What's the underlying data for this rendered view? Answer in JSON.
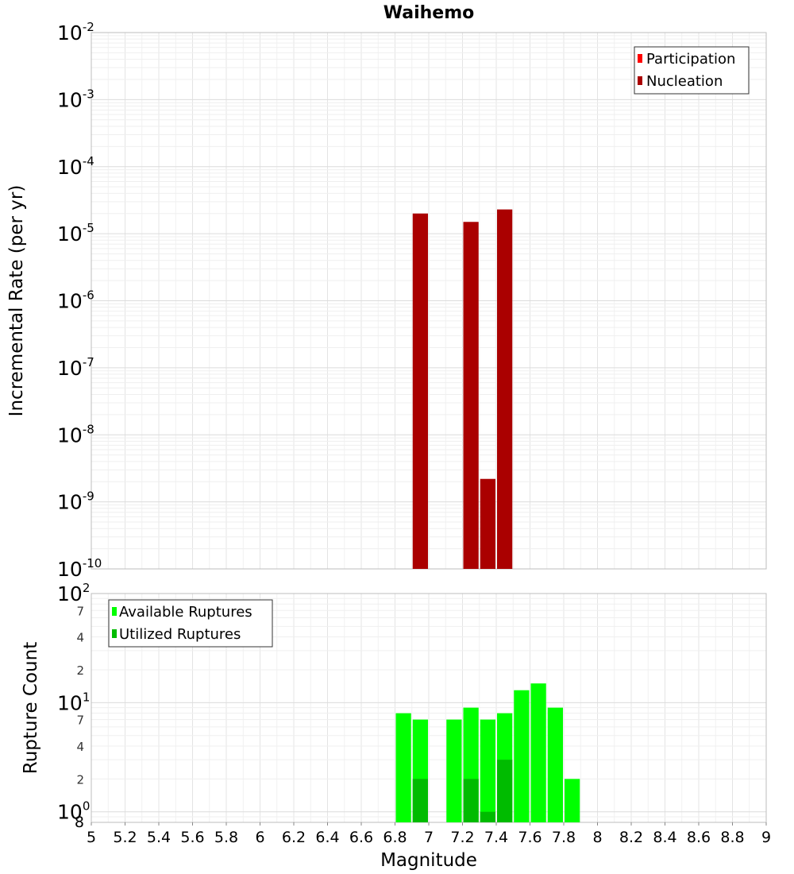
{
  "chart_data": [
    {
      "type": "bar",
      "title": "Waihemo",
      "ylabel": "Incremental Rate (per yr)",
      "xlabel": "Magnitude",
      "yscale": "log",
      "ylim": [
        1e-10,
        0.01
      ],
      "xlim": [
        5,
        9
      ],
      "x_ticks": [
        "5",
        "5.2",
        "5.4",
        "5.6",
        "5.8",
        "6",
        "6.2",
        "6.4",
        "6.6",
        "6.8",
        "7",
        "7.2",
        "7.4",
        "7.6",
        "7.8",
        "8",
        "8.2",
        "8.4",
        "8.6",
        "8.8",
        "9"
      ],
      "grid": true,
      "legend_position": "top-right",
      "series": [
        {
          "name": "Participation",
          "color": "#ff0000",
          "x": [],
          "values": []
        },
        {
          "name": "Nucleation",
          "color": "#aa0000",
          "x": [
            6.95,
            7.25,
            7.35,
            7.45
          ],
          "values": [
            2e-05,
            1.5e-05,
            2.2e-09,
            2.3e-05
          ]
        }
      ]
    },
    {
      "type": "bar",
      "ylabel": "Rupture Count",
      "yscale": "log",
      "ylim": [
        0.8,
        100
      ],
      "grid": true,
      "legend_position": "top-left",
      "series": [
        {
          "name": "Available Ruptures",
          "color": "#00ff00",
          "x": [
            6.85,
            6.95,
            7.15,
            7.25,
            7.35,
            7.45,
            7.55,
            7.65,
            7.75,
            7.85
          ],
          "values": [
            8,
            7,
            7,
            9,
            7,
            8,
            13,
            15,
            9,
            2
          ]
        },
        {
          "name": "Utilized Ruptures",
          "color": "#00bb00",
          "x": [
            6.95,
            7.25,
            7.35,
            7.45
          ],
          "values": [
            2,
            2,
            1,
            3
          ]
        }
      ]
    }
  ]
}
